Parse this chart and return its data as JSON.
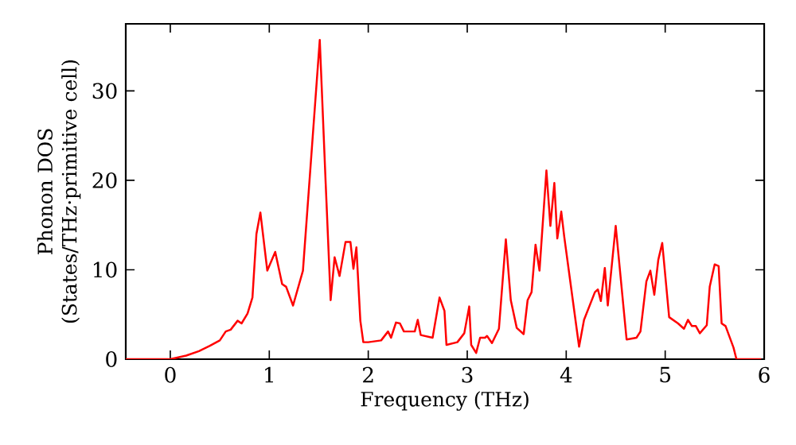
{
  "chart_data": {
    "type": "line",
    "xlabel": "Frequency (THz)",
    "ylabel": "Phonon DOS (States/THz·primitive cell)",
    "xlim": [
      -0.45,
      6
    ],
    "ylim": [
      0,
      37.5
    ],
    "xticks": [
      0,
      1,
      2,
      3,
      4,
      5,
      6
    ],
    "yticks": [
      0,
      10,
      20,
      30
    ],
    "grid": false,
    "marker": "none",
    "line_style": "solid",
    "series": [
      {
        "color": "#ff0000",
        "x": [
          -0.45,
          0.0,
          0.16,
          0.29,
          0.4,
          0.5,
          0.56,
          0.61,
          0.68,
          0.72,
          0.78,
          0.83,
          0.87,
          0.91,
          0.98,
          1.06,
          1.13,
          1.17,
          1.24,
          1.34,
          1.51,
          1.57,
          1.62,
          1.66,
          1.71,
          1.77,
          1.82,
          1.85,
          1.88,
          1.92,
          1.95,
          2.0,
          2.13,
          2.2,
          2.23,
          2.28,
          2.32,
          2.36,
          2.47,
          2.5,
          2.53,
          2.65,
          2.72,
          2.77,
          2.79,
          2.9,
          2.97,
          3.02,
          3.04,
          3.09,
          3.13,
          3.18,
          3.2,
          3.25,
          3.32,
          3.39,
          3.44,
          3.5,
          3.57,
          3.61,
          3.65,
          3.69,
          3.73,
          3.8,
          3.84,
          3.88,
          3.91,
          3.95,
          3.98,
          4.13,
          4.18,
          4.29,
          4.32,
          4.35,
          4.39,
          4.42,
          4.5,
          4.61,
          4.71,
          4.75,
          4.81,
          4.85,
          4.89,
          4.93,
          4.97,
          5.04,
          5.13,
          5.19,
          5.23,
          5.27,
          5.31,
          5.35,
          5.42,
          5.45,
          5.5,
          5.54,
          5.57,
          5.61,
          5.69,
          5.72,
          5.97
        ],
        "values": [
          0,
          0,
          0.4,
          0.9,
          1.5,
          2.1,
          3.1,
          3.3,
          4.3,
          4.0,
          5.1,
          6.9,
          14.0,
          16.4,
          9.9,
          12.0,
          8.4,
          8.1,
          6.0,
          9.9,
          35.7,
          19.6,
          6.6,
          11.4,
          9.3,
          13.1,
          13.1,
          10.1,
          12.5,
          4.3,
          1.9,
          1.9,
          2.1,
          3.1,
          2.4,
          4.1,
          4.0,
          3.1,
          3.1,
          4.4,
          2.7,
          2.4,
          6.9,
          5.4,
          1.6,
          1.9,
          2.9,
          5.9,
          1.6,
          0.7,
          2.4,
          2.4,
          2.6,
          1.8,
          3.4,
          13.4,
          6.6,
          3.5,
          2.8,
          6.6,
          7.5,
          12.8,
          9.9,
          21.1,
          14.9,
          19.7,
          13.5,
          16.5,
          13.7,
          1.4,
          4.4,
          7.5,
          7.8,
          6.5,
          10.2,
          6.0,
          14.9,
          2.2,
          2.4,
          3.1,
          8.7,
          9.9,
          7.2,
          11.1,
          13.0,
          4.7,
          4.0,
          3.4,
          4.4,
          3.7,
          3.7,
          2.9,
          3.8,
          8.1,
          10.6,
          10.4,
          4.0,
          3.7,
          1.3,
          0,
          0
        ]
      }
    ]
  }
}
